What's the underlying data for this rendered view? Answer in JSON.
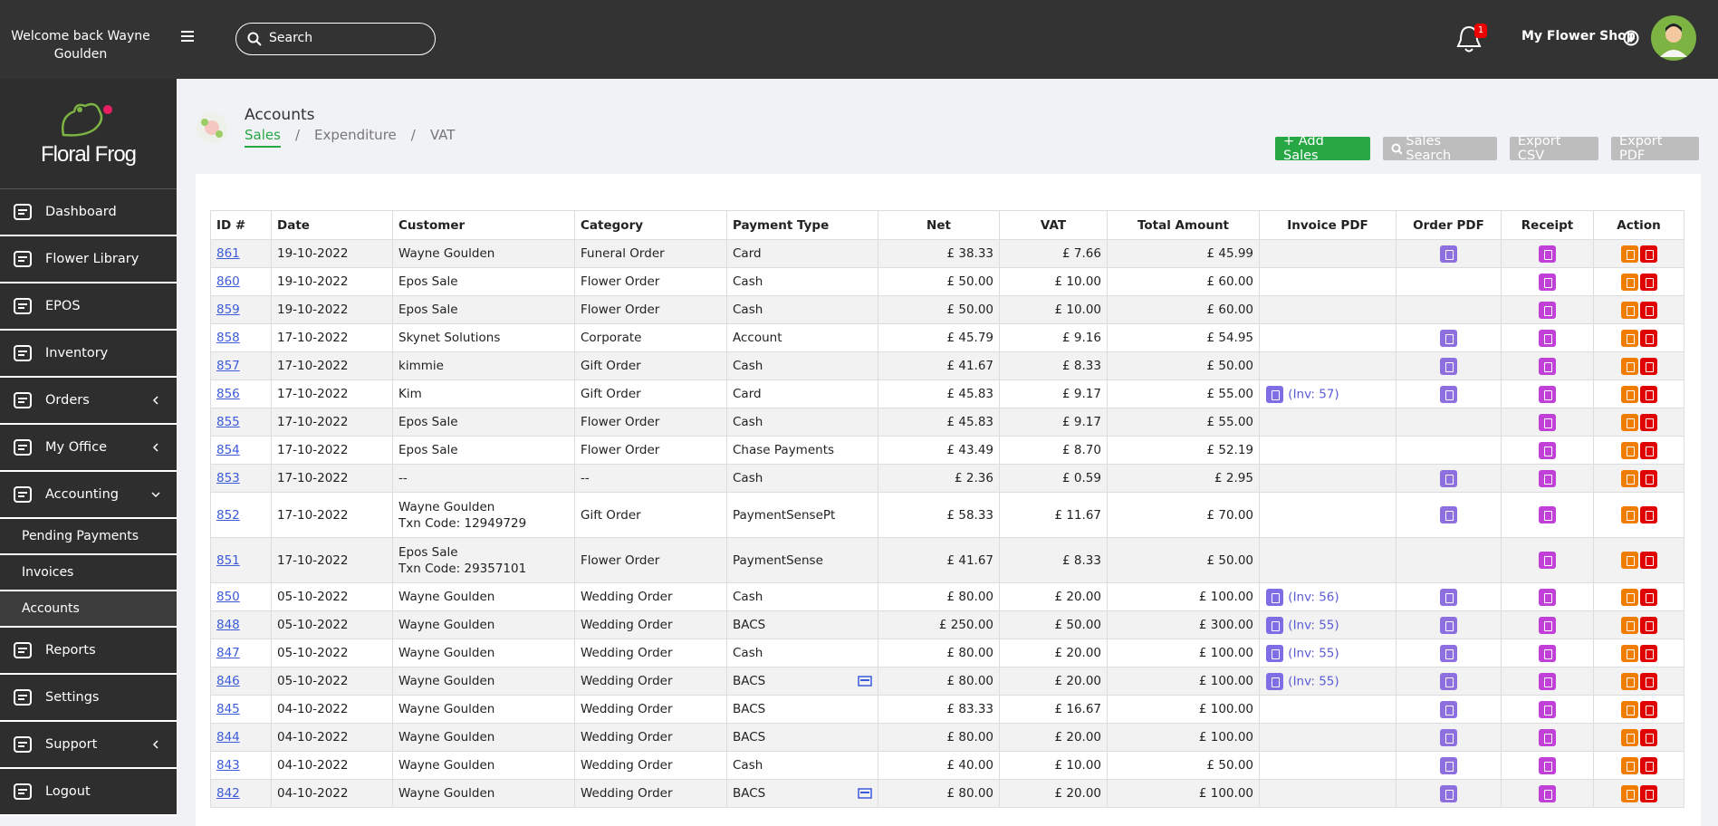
{
  "header": {
    "welcome": "Welcome back Wayne Goulden",
    "search_placeholder": "Search",
    "notifications": "1",
    "shop": "My Flower Shop"
  },
  "sidebar": {
    "logo": "Floral Frog",
    "menu": [
      {
        "label": "Dashboard"
      },
      {
        "label": "Flower Library"
      },
      {
        "label": "EPOS"
      },
      {
        "label": "Inventory"
      },
      {
        "label": "Orders",
        "chevron": "left"
      },
      {
        "label": "My Office",
        "chevron": "left"
      },
      {
        "label": "Accounting",
        "chevron": "down",
        "submenu": [
          {
            "label": "Pending Payments"
          },
          {
            "label": "Invoices"
          },
          {
            "label": "Accounts",
            "active": true
          }
        ]
      },
      {
        "label": "Reports"
      },
      {
        "label": "Settings"
      },
      {
        "label": "Support",
        "chevron": "left"
      },
      {
        "label": "Logout"
      }
    ]
  },
  "page": {
    "title": "Accounts",
    "tabs": [
      "Sales",
      "Expenditure",
      "VAT"
    ],
    "tab_separator": "/",
    "active_tab": 0,
    "buttons": [
      {
        "label": "+ Add Sales",
        "color": "#28a745"
      },
      {
        "label": "Sales Search",
        "color": "#bdbdbd",
        "icon": "search"
      },
      {
        "label": "Export CSV",
        "color": "#bdbdbd"
      },
      {
        "label": "Export PDF",
        "color": "#bdbdbd"
      }
    ]
  },
  "table": {
    "headers": [
      "ID #",
      "Date",
      "Customer",
      "Category",
      "Payment Type",
      "Net",
      "VAT",
      "Total Amount",
      "Invoice PDF",
      "Order PDF",
      "Receipt",
      "Action"
    ],
    "rows": [
      {
        "id": "861",
        "date": "19-10-2022",
        "customer": [
          "Wayne Goulden"
        ],
        "category": "Funeral Order",
        "payment": "Card",
        "net": "£ 38.33",
        "vat": "£ 7.66",
        "total": "£ 45.99",
        "order_pdf": true
      },
      {
        "id": "860",
        "date": "19-10-2022",
        "customer": [
          "Epos Sale"
        ],
        "category": "Flower Order",
        "payment": "Cash",
        "net": "£ 50.00",
        "vat": "£ 10.00",
        "total": "£ 60.00",
        "order_pdf": false
      },
      {
        "id": "859",
        "date": "19-10-2022",
        "customer": [
          "Epos Sale"
        ],
        "category": "Flower Order",
        "payment": "Cash",
        "net": "£ 50.00",
        "vat": "£ 10.00",
        "total": "£ 60.00",
        "order_pdf": false
      },
      {
        "id": "858",
        "date": "17-10-2022",
        "customer": [
          "Skynet Solutions"
        ],
        "category": "Corporate",
        "payment": "Account",
        "net": "£ 45.79",
        "vat": "£ 9.16",
        "total": "£ 54.95",
        "order_pdf": true
      },
      {
        "id": "857",
        "date": "17-10-2022",
        "customer": [
          "kimmie"
        ],
        "category": "Gift Order",
        "payment": "Cash",
        "net": "£ 41.67",
        "vat": "£ 8.33",
        "total": "£ 50.00",
        "order_pdf": true
      },
      {
        "id": "856",
        "date": "17-10-2022",
        "customer": [
          "Kim"
        ],
        "category": "Gift Order",
        "payment": "Card",
        "net": "£ 45.83",
        "vat": "£ 9.17",
        "total": "£ 55.00",
        "invoice": "(Inv: 57)",
        "order_pdf": true
      },
      {
        "id": "855",
        "date": "17-10-2022",
        "customer": [
          "Epos Sale"
        ],
        "category": "Flower Order",
        "payment": "Cash",
        "net": "£ 45.83",
        "vat": "£ 9.17",
        "total": "£ 55.00",
        "order_pdf": false
      },
      {
        "id": "854",
        "date": "17-10-2022",
        "customer": [
          "Epos Sale"
        ],
        "category": "Flower Order",
        "payment": "Chase Payments",
        "net": "£ 43.49",
        "vat": "£ 8.70",
        "total": "£ 52.19",
        "order_pdf": false
      },
      {
        "id": "853",
        "date": "17-10-2022",
        "customer": [
          "--"
        ],
        "category": "--",
        "payment": "Cash",
        "net": "£ 2.36",
        "vat": "£ 0.59",
        "total": "£ 2.95",
        "order_pdf": true
      },
      {
        "id": "852",
        "date": "17-10-2022",
        "customer": [
          "Wayne Goulden",
          "Txn Code: 12949729"
        ],
        "category": "Gift Order",
        "payment": "PaymentSensePt",
        "net": "£ 58.33",
        "vat": "£ 11.67",
        "total": "£ 70.00",
        "order_pdf": true
      },
      {
        "id": "851",
        "date": "17-10-2022",
        "customer": [
          "Epos Sale",
          "Txn Code: 29357101"
        ],
        "category": "Flower Order",
        "payment": "PaymentSense",
        "net": "£ 41.67",
        "vat": "£ 8.33",
        "total": "£ 50.00",
        "order_pdf": false
      },
      {
        "id": "850",
        "date": "05-10-2022",
        "customer": [
          "Wayne Goulden"
        ],
        "category": "Wedding Order",
        "payment": "Cash",
        "net": "£ 80.00",
        "vat": "£ 20.00",
        "total": "£ 100.00",
        "invoice": "(Inv: 56)",
        "order_pdf": true
      },
      {
        "id": "848",
        "date": "05-10-2022",
        "customer": [
          "Wayne Goulden"
        ],
        "category": "Wedding Order",
        "payment": "BACS",
        "net": "£ 250.00",
        "vat": "£ 50.00",
        "total": "£ 300.00",
        "invoice": "(Inv: 55)",
        "order_pdf": true
      },
      {
        "id": "847",
        "date": "05-10-2022",
        "customer": [
          "Wayne Goulden"
        ],
        "category": "Wedding Order",
        "payment": "Cash",
        "net": "£ 80.00",
        "vat": "£ 20.00",
        "total": "£ 100.00",
        "invoice": "(Inv: 55)",
        "order_pdf": true
      },
      {
        "id": "846",
        "date": "05-10-2022",
        "customer": [
          "Wayne Goulden"
        ],
        "category": "Wedding Order",
        "payment": "BACS",
        "payment_icon": true,
        "net": "£ 80.00",
        "vat": "£ 20.00",
        "total": "£ 100.00",
        "invoice": "(Inv: 55)",
        "order_pdf": true
      },
      {
        "id": "845",
        "date": "04-10-2022",
        "customer": [
          "Wayne Goulden"
        ],
        "category": "Wedding Order",
        "payment": "BACS",
        "net": "£ 83.33",
        "vat": "£ 16.67",
        "total": "£ 100.00",
        "order_pdf": true
      },
      {
        "id": "844",
        "date": "04-10-2022",
        "customer": [
          "Wayne Goulden"
        ],
        "category": "Wedding Order",
        "payment": "BACS",
        "net": "£ 80.00",
        "vat": "£ 20.00",
        "total": "£ 100.00",
        "order_pdf": true
      },
      {
        "id": "843",
        "date": "04-10-2022",
        "customer": [
          "Wayne Goulden"
        ],
        "category": "Wedding Order",
        "payment": "Cash",
        "net": "£ 40.00",
        "vat": "£ 10.00",
        "total": "£ 50.00",
        "order_pdf": true
      },
      {
        "id": "842",
        "date": "04-10-2022",
        "customer": [
          "Wayne Goulden"
        ],
        "category": "Wedding Order",
        "payment": "BACS",
        "payment_icon": true,
        "net": "£ 80.00",
        "vat": "£ 20.00",
        "total": "£ 100.00",
        "order_pdf": true
      }
    ]
  }
}
